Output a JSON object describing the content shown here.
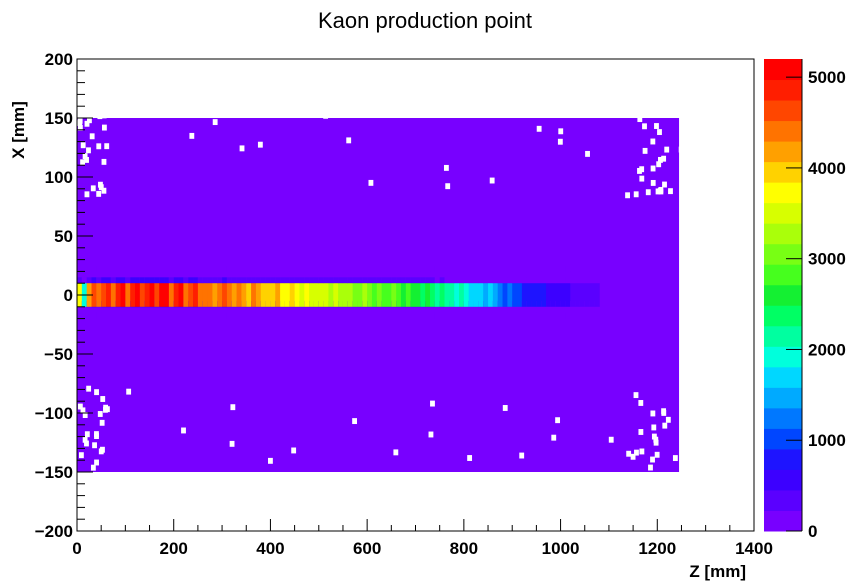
{
  "chart_data": {
    "type": "heatmap",
    "title": "Kaon production point",
    "xlabel": "Z [mm]",
    "ylabel": "X [mm]",
    "xlim": [
      0,
      1400
    ],
    "ylim": [
      -200,
      200
    ],
    "x_ticks": [
      0,
      200,
      400,
      600,
      800,
      1000,
      1200,
      1400
    ],
    "y_ticks": [
      -200,
      -150,
      -100,
      -50,
      0,
      50,
      100,
      150,
      200
    ],
    "x_tick_labels": [
      "0",
      "200",
      "400",
      "600",
      "800",
      "1000",
      "1200",
      "1400"
    ],
    "y_tick_labels": [
      "−200",
      "−150",
      "−100",
      "−50",
      "0",
      "50",
      "100",
      "150",
      "200"
    ],
    "zlim": [
      0,
      5200
    ],
    "z_ticks": [
      0,
      1000,
      2000,
      3000,
      4000,
      5000
    ],
    "z_tick_labels": [
      "0",
      "1000",
      "2000",
      "3000",
      "4000",
      "5000"
    ],
    "palette": [
      "#7800ff",
      "#5a00ff",
      "#3c00ff",
      "#1e14ff",
      "#0046ff",
      "#0078ff",
      "#00aaff",
      "#00d7ff",
      "#00ffdc",
      "#00ffa0",
      "#00ff64",
      "#14f032",
      "#46ff1e",
      "#78ff14",
      "#aaff0a",
      "#d7ff00",
      "#ffff00",
      "#ffd200",
      "#ffa000",
      "#ff7300",
      "#ff4600",
      "#ff1e00",
      "#ff0000"
    ],
    "beam_core_z_centers": [
      5,
      15,
      25,
      35,
      45,
      55,
      65,
      75,
      85,
      95,
      105,
      115,
      125,
      135,
      145,
      155,
      165,
      175,
      185,
      195,
      205,
      215,
      225,
      235,
      245,
      255,
      265,
      275,
      285,
      295,
      305,
      315,
      325,
      335,
      345,
      355,
      365,
      375,
      385,
      395,
      405,
      415,
      425,
      435,
      445,
      455,
      465,
      475,
      485,
      495,
      505,
      515,
      525,
      535,
      545,
      555,
      565,
      575,
      585,
      595,
      605,
      615,
      625,
      635,
      645,
      655,
      665,
      675,
      685,
      695,
      705,
      715,
      725,
      735,
      745,
      755,
      765,
      775,
      785,
      795,
      805,
      815,
      825,
      835,
      845,
      855,
      865,
      875,
      885,
      895,
      905,
      915,
      925,
      935,
      945,
      955,
      965,
      975,
      985,
      995,
      1005,
      1015,
      1025,
      1035,
      1045,
      1055,
      1065,
      1075
    ],
    "beam_core_counts": [
      3800,
      2000,
      4200,
      4600,
      4300,
      4700,
      4900,
      4400,
      4800,
      5000,
      4500,
      4900,
      5100,
      4700,
      4900,
      5100,
      4600,
      5000,
      5100,
      4500,
      4800,
      5000,
      4500,
      4700,
      4900,
      4300,
      4400,
      4500,
      4200,
      4300,
      4600,
      4300,
      4100,
      4300,
      4200,
      4000,
      4300,
      4100,
      4000,
      3900,
      4000,
      4100,
      3800,
      3700,
      3900,
      3700,
      3600,
      3700,
      3500,
      3400,
      3600,
      3400,
      3300,
      3400,
      3200,
      3300,
      3200,
      3100,
      3000,
      3200,
      3000,
      2900,
      3000,
      2800,
      2900,
      3000,
      2800,
      2600,
      2800,
      2600,
      2500,
      2400,
      2600,
      2300,
      2200,
      2300,
      2100,
      2200,
      2000,
      2100,
      1900,
      1700,
      1800,
      1600,
      1500,
      1700,
      1400,
      1300,
      1100,
      1200,
      1000,
      950,
      900,
      850,
      800,
      750,
      700,
      650,
      600,
      560,
      520,
      480,
      440,
      400,
      380,
      360,
      340,
      300
    ],
    "halo_x_range": [
      -150,
      150
    ],
    "halo_z_range": [
      0,
      1245
    ],
    "halo_count": 120
  }
}
